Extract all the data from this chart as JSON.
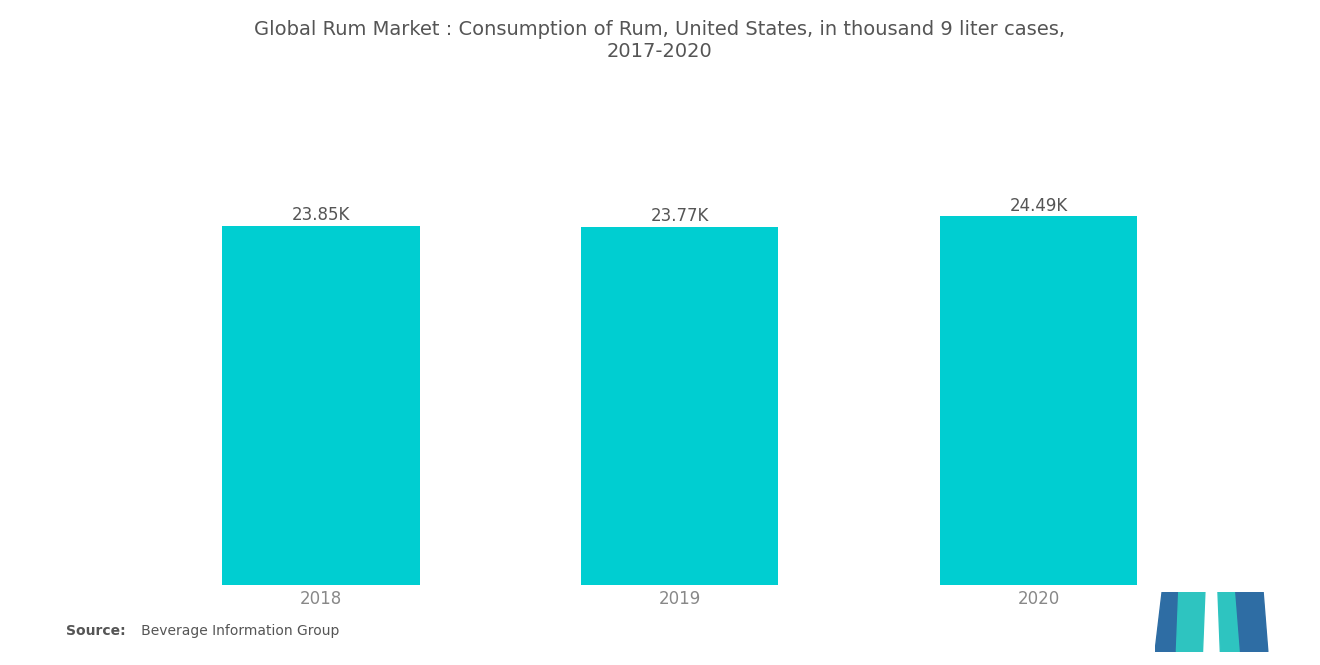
{
  "title_line1": "Global Rum Market : Consumption of Rum, United States, in thousand 9 liter cases,",
  "title_line2": "2017-2020",
  "categories": [
    "2018",
    "2019",
    "2020"
  ],
  "values": [
    23.85,
    23.77,
    24.49
  ],
  "labels": [
    "23.85K",
    "23.77K",
    "24.49K"
  ],
  "bar_color": "#00CED1",
  "background_color": "#FFFFFF",
  "title_color": "#555555",
  "label_color": "#555555",
  "tick_color": "#888888",
  "source_bold": "Source:",
  "source_rest": "   Beverage Information Group",
  "ylim_min": 0,
  "ylim_max": 26.5,
  "title_fontsize": 14,
  "label_fontsize": 12,
  "tick_fontsize": 12,
  "source_fontsize": 10,
  "bar_width": 0.55,
  "logo_blue": "#2E6DA4",
  "logo_teal": "#2EC4C0"
}
